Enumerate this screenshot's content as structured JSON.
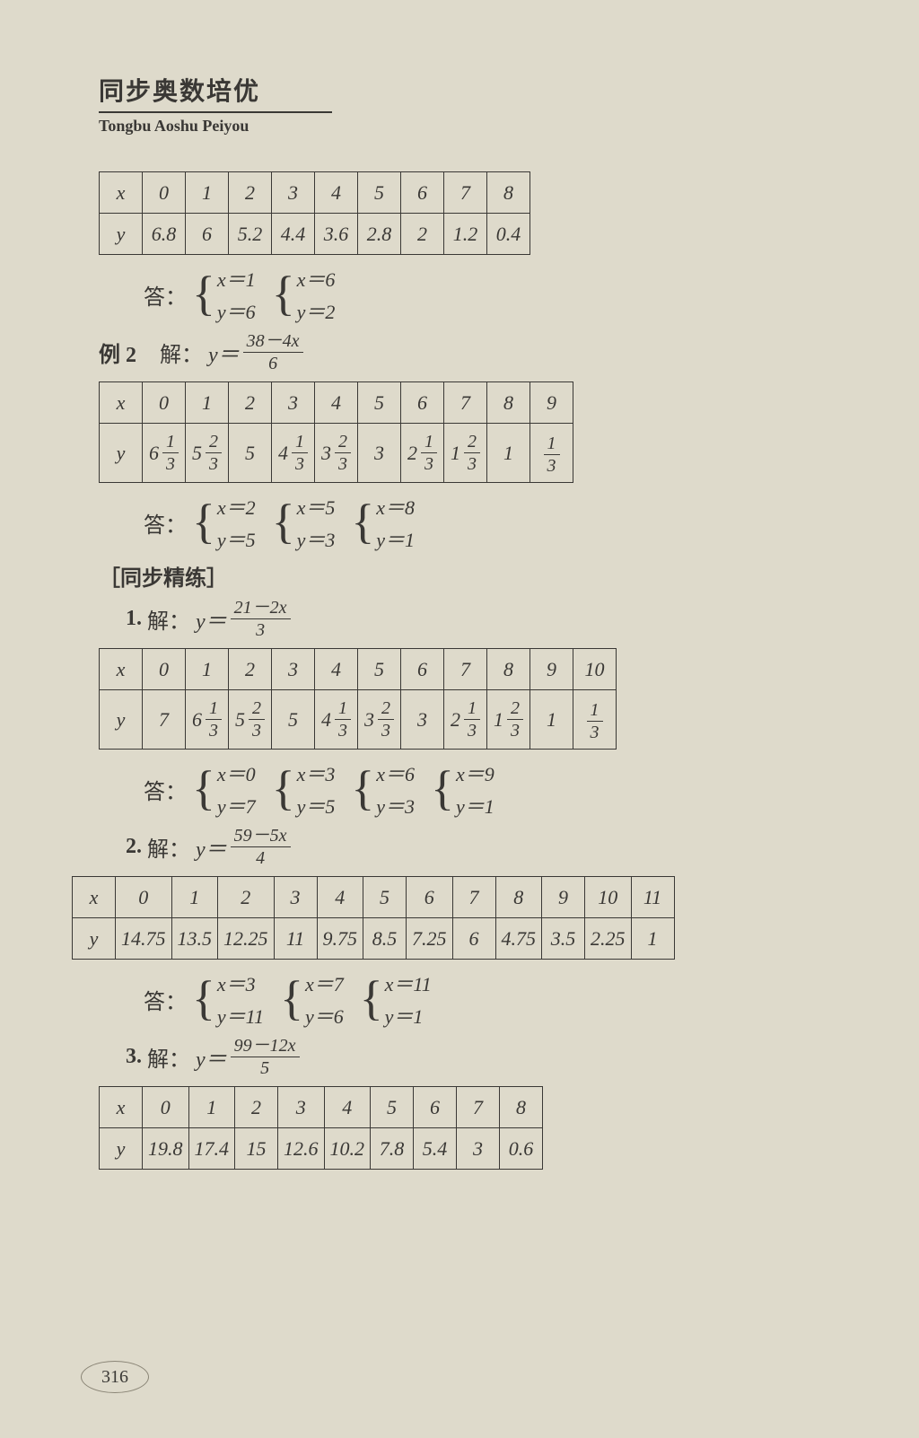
{
  "header": {
    "title_cn": "同步奥数培优",
    "title_py": "Tongbu Aoshu Peiyou"
  },
  "table1": {
    "var_x": "x",
    "var_y": "y",
    "x": [
      "0",
      "1",
      "2",
      "3",
      "4",
      "5",
      "6",
      "7",
      "8"
    ],
    "y": [
      "6.8",
      "6",
      "5.2",
      "4.4",
      "3.6",
      "2.8",
      "2",
      "1.2",
      "0.4"
    ]
  },
  "answer1": {
    "label": "答：",
    "systems": [
      {
        "x": "x＝1",
        "y": "y＝6"
      },
      {
        "x": "x＝6",
        "y": "y＝2"
      }
    ]
  },
  "ex2": {
    "label": "例 2",
    "solve_label": "解：",
    "eq_lhs": "y＝",
    "eq_num": "38－4x",
    "eq_den": "6"
  },
  "table2": {
    "var_x": "x",
    "var_y": "y",
    "x": [
      "0",
      "1",
      "2",
      "3",
      "4",
      "5",
      "6",
      "7",
      "8",
      "9"
    ],
    "y": [
      {
        "w": "6",
        "n": "1",
        "d": "3"
      },
      {
        "w": "5",
        "n": "2",
        "d": "3"
      },
      {
        "plain": "5"
      },
      {
        "w": "4",
        "n": "1",
        "d": "3"
      },
      {
        "w": "3",
        "n": "2",
        "d": "3"
      },
      {
        "plain": "3"
      },
      {
        "w": "2",
        "n": "1",
        "d": "3"
      },
      {
        "w": "1",
        "n": "2",
        "d": "3"
      },
      {
        "plain": "1"
      },
      {
        "n": "1",
        "d": "3"
      }
    ]
  },
  "answer2": {
    "label": "答：",
    "systems": [
      {
        "x": "x＝2",
        "y": "y＝5"
      },
      {
        "x": "x＝5",
        "y": "y＝3"
      },
      {
        "x": "x＝8",
        "y": "y＝1"
      }
    ]
  },
  "section": {
    "label": "［同步精练］"
  },
  "p1": {
    "num": "1.",
    "solve_label": "解：",
    "eq_lhs": "y＝",
    "eq_num": "21－2x",
    "eq_den": "3"
  },
  "table3": {
    "var_x": "x",
    "var_y": "y",
    "x": [
      "0",
      "1",
      "2",
      "3",
      "4",
      "5",
      "6",
      "7",
      "8",
      "9",
      "10"
    ],
    "y": [
      {
        "plain": "7"
      },
      {
        "w": "6",
        "n": "1",
        "d": "3"
      },
      {
        "w": "5",
        "n": "2",
        "d": "3"
      },
      {
        "plain": "5"
      },
      {
        "w": "4",
        "n": "1",
        "d": "3"
      },
      {
        "w": "3",
        "n": "2",
        "d": "3"
      },
      {
        "plain": "3"
      },
      {
        "w": "2",
        "n": "1",
        "d": "3"
      },
      {
        "w": "1",
        "n": "2",
        "d": "3"
      },
      {
        "plain": "1"
      },
      {
        "n": "1",
        "d": "3"
      }
    ]
  },
  "answer3": {
    "label": "答：",
    "systems": [
      {
        "x": "x＝0",
        "y": "y＝7"
      },
      {
        "x": "x＝3",
        "y": "y＝5"
      },
      {
        "x": "x＝6",
        "y": "y＝3"
      },
      {
        "x": "x＝9",
        "y": "y＝1"
      }
    ]
  },
  "p2": {
    "num": "2.",
    "solve_label": "解：",
    "eq_lhs": "y＝",
    "eq_num": "59－5x",
    "eq_den": "4"
  },
  "table4": {
    "var_x": "x",
    "var_y": "y",
    "x": [
      "0",
      "1",
      "2",
      "3",
      "4",
      "5",
      "6",
      "7",
      "8",
      "9",
      "10",
      "11"
    ],
    "y": [
      "14.75",
      "13.5",
      "12.25",
      "11",
      "9.75",
      "8.5",
      "7.25",
      "6",
      "4.75",
      "3.5",
      "2.25",
      "1"
    ]
  },
  "answer4": {
    "label": "答：",
    "systems": [
      {
        "x": "x＝3",
        "y": "y＝11"
      },
      {
        "x": "x＝7",
        "y": "y＝6"
      },
      {
        "x": "x＝11",
        "y": "y＝1"
      }
    ]
  },
  "p3": {
    "num": "3.",
    "solve_label": "解：",
    "eq_lhs": "y＝",
    "eq_num": "99－12x",
    "eq_den": "5"
  },
  "table5": {
    "var_x": "x",
    "var_y": "y",
    "x": [
      "0",
      "1",
      "2",
      "3",
      "4",
      "5",
      "6",
      "7",
      "8"
    ],
    "y": [
      "19.8",
      "17.4",
      "15",
      "12.6",
      "10.2",
      "7.8",
      "5.4",
      "3",
      "0.6"
    ]
  },
  "page": "316"
}
